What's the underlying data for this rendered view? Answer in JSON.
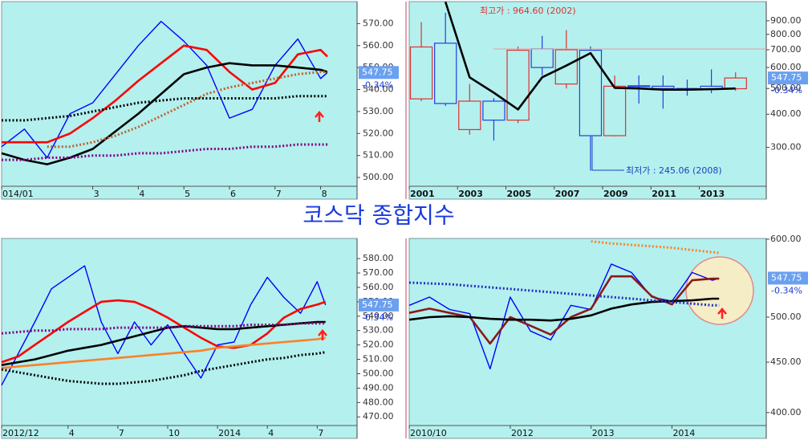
{
  "title": "코스닥 종합지수",
  "chart_data": [
    {
      "type": "line",
      "x": [
        1,
        1.5,
        2,
        2.5,
        3,
        3.5,
        4,
        4.5,
        5,
        5.5,
        6,
        6.5,
        7,
        7.5,
        8,
        8.15
      ],
      "xlim": [
        1,
        8.8
      ],
      "xticks": [
        {
          "value": 1,
          "label": "014/01"
        },
        3,
        4,
        5,
        6,
        7,
        8
      ],
      "ylim": [
        496,
        580
      ],
      "yticks": [
        {
          "value": 500,
          "label": "500.00"
        },
        {
          "value": 510,
          "label": "510.00"
        },
        {
          "value": 520,
          "label": "520.00"
        },
        {
          "value": 530,
          "label": "530.00"
        },
        {
          "value": 540,
          "label": "540.00"
        },
        {
          "value": 550,
          "label": "550.00"
        },
        {
          "value": 560,
          "label": "560.00"
        },
        {
          "value": 570,
          "label": "570.00"
        }
      ],
      "log": false,
      "series": [
        {
          "color": "#0000ff",
          "style": "thin",
          "values": [
            514,
            522,
            509,
            529,
            534,
            547,
            560,
            571,
            562,
            551,
            527,
            531,
            551,
            563,
            545,
            547.75
          ]
        },
        {
          "color": "#ff0000",
          "style": "thick",
          "values": [
            516,
            516,
            516,
            520,
            527,
            535,
            544,
            552,
            560,
            558,
            548,
            540,
            543,
            556,
            558,
            555
          ]
        },
        {
          "color": "#000000",
          "style": "thick",
          "values": [
            511,
            508,
            506,
            509,
            513,
            521,
            529,
            538,
            547,
            550,
            552,
            551,
            551,
            550,
            549,
            548
          ]
        },
        {
          "color": "#c0602a",
          "style": "dotted",
          "values": [
            null,
            null,
            514,
            514,
            516,
            519,
            523,
            528,
            533,
            538,
            541,
            543,
            545,
            547,
            548,
            548
          ]
        },
        {
          "color": "#000000",
          "style": "dotted",
          "values": [
            526,
            526,
            527,
            528,
            530,
            532,
            534,
            535,
            536,
            536,
            536,
            536,
            536,
            537,
            537,
            537
          ]
        },
        {
          "color": "#800080",
          "style": "dotted",
          "values": [
            508,
            508,
            509,
            509,
            510,
            510,
            511,
            511,
            512,
            513,
            513,
            514,
            514,
            515,
            515,
            515
          ]
        }
      ],
      "price_tag": "547.75",
      "change_tag": "-0.34%"
    },
    {
      "type": "candlestick",
      "x": [
        2001,
        2002,
        2003,
        2004,
        2005,
        2006,
        2007,
        2008,
        2009,
        2010,
        2011,
        2012,
        2013,
        2014
      ],
      "xlim": [
        2001,
        2015.77
      ],
      "xticks": [
        2001,
        2003,
        2005,
        2007,
        2009,
        2011,
        2013
      ],
      "ylim": [
        214,
        1063
      ],
      "yticks": [
        {
          "value": 300,
          "label": "300.00"
        },
        {
          "value": 400,
          "label": "400.00"
        },
        {
          "value": 500,
          "label": "500.00"
        },
        {
          "value": 600,
          "label": "600.00"
        },
        {
          "value": 700,
          "label": "700.00"
        },
        {
          "value": 800,
          "label": "800.00"
        },
        {
          "value": 900,
          "label": "900.00"
        }
      ],
      "log": true,
      "open": [
        457,
        741,
        350,
        448,
        380,
        705,
        520,
        697,
        332,
        512,
        510,
        500,
        510,
        499
      ],
      "high": [
        890,
        964.6,
        520,
        460,
        720,
        790,
        830,
        720,
        560,
        560,
        560,
        540,
        590,
        575
      ],
      "low": [
        448,
        430,
        335,
        318,
        370,
        560,
        500,
        245.06,
        330,
        439,
        420,
        470,
        480,
        490
      ],
      "close": [
        717,
        439,
        448,
        380,
        697,
        600,
        700,
        332,
        510,
        510,
        500,
        496,
        499,
        547.75
      ],
      "up_color": "#e03030",
      "down_color": "#2040e0",
      "series": [
        {
          "color": "#000000",
          "style": "thick",
          "values": [
            null,
            1060,
            551,
            482,
            417,
            551,
            610,
            680,
            503,
            500,
            495,
            495,
            497,
            500
          ]
        }
      ],
      "annotations": [
        {
          "text": "최고가 : 964.60 (2002)",
          "color": "#e03030"
        },
        {
          "text": "최저가 : 245.06 (2008)",
          "color": "#2040c0"
        }
      ],
      "price_tag": "547.75",
      "change_tag": "-0.34%"
    },
    {
      "type": "line",
      "x": [
        0,
        1,
        2,
        3,
        4,
        5,
        6,
        7,
        8,
        9,
        10,
        11,
        12,
        13,
        14,
        15,
        16,
        17,
        18,
        19,
        19.5
      ],
      "xlim": [
        0,
        21.4
      ],
      "xticks": [
        {
          "value": 0,
          "label": "2012/12"
        },
        4,
        7,
        10,
        {
          "value": 13,
          "label": "2014"
        },
        {
          "value": 16,
          "label": "4"
        },
        {
          "value": 19,
          "label": "7"
        }
      ],
      "ylim": [
        464,
        594
      ],
      "yticks": [
        {
          "value": 470,
          "label": "470.00"
        },
        {
          "value": 480,
          "label": "480.00"
        },
        {
          "value": 490,
          "label": "490.00"
        },
        {
          "value": 500,
          "label": "500.00"
        },
        {
          "value": 510,
          "label": "510.00"
        },
        {
          "value": 520,
          "label": "520.00"
        },
        {
          "value": 530,
          "label": "530.00"
        },
        {
          "value": 540,
          "label": "540.00"
        },
        {
          "value": 550,
          "label": "550.00"
        },
        {
          "value": 560,
          "label": "560.00"
        },
        {
          "value": 570,
          "label": "570.00"
        },
        {
          "value": 580,
          "label": "580.00"
        }
      ],
      "log": false,
      "series": [
        {
          "color": "#0000ff",
          "style": "thin",
          "values": [
            492,
            514,
            536,
            559,
            567,
            575,
            536,
            514,
            536,
            520,
            534,
            514,
            497,
            520,
            522,
            548,
            567,
            553,
            542,
            564,
            547.75
          ]
        },
        {
          "color": "#ff0000",
          "style": "thick",
          "values": [
            508,
            512,
            520,
            528,
            536,
            543,
            550,
            551,
            550,
            545,
            539,
            532,
            525,
            519,
            518,
            520,
            528,
            539,
            545,
            548,
            550
          ]
        },
        {
          "color": "#000000",
          "style": "thick",
          "values": [
            506,
            508,
            510,
            513,
            516,
            518,
            520,
            523,
            526,
            529,
            532,
            533,
            532,
            531,
            531,
            532,
            533,
            534,
            535,
            536,
            536
          ]
        },
        {
          "color": "#ff7f27",
          "style": "thick",
          "values": [
            504,
            505,
            506,
            507,
            508,
            509,
            510,
            511,
            512,
            513,
            514,
            515,
            516,
            518,
            519,
            520,
            521,
            522,
            523,
            524,
            525
          ]
        },
        {
          "color": "#000000",
          "style": "dotted",
          "values": [
            503,
            501,
            499,
            497,
            495,
            494,
            493,
            493,
            494,
            495,
            497,
            499,
            502,
            504,
            506,
            508,
            510,
            511,
            513,
            514,
            515
          ]
        },
        {
          "color": "#800080",
          "style": "dotted",
          "values": [
            528,
            529,
            530,
            530,
            531,
            531,
            531,
            532,
            532,
            532,
            532,
            533,
            533,
            533,
            533,
            534,
            534,
            534,
            535,
            535,
            535
          ]
        }
      ],
      "price_tag": "547.75",
      "change_tag": "-0.34%"
    },
    {
      "type": "line",
      "x": [
        0,
        3,
        6,
        9,
        12,
        15,
        18,
        21,
        24,
        27,
        30,
        33,
        36,
        39,
        42,
        45,
        46
      ],
      "xlim": [
        0,
        53
      ],
      "xticks": [
        {
          "value": 0,
          "label": "2010/10"
        },
        {
          "value": 15,
          "label": "2012"
        },
        {
          "value": 27,
          "label": "2013"
        },
        {
          "value": 39,
          "label": "2014"
        }
      ],
      "ylim": [
        388,
        601
      ],
      "yticks": [
        {
          "value": 400,
          "label": "400.00"
        },
        {
          "value": 450,
          "label": "450.00"
        },
        {
          "value": 500,
          "label": "500.00"
        },
        {
          "value": 600,
          "label": "600.00"
        }
      ],
      "log": true,
      "series": [
        {
          "color": "#0000ff",
          "style": "thin",
          "values": [
            514,
            524,
            509,
            504,
            443,
            524,
            484,
            474,
            514,
            509,
            566,
            555,
            524,
            519,
            555,
            545,
            547.75
          ]
        },
        {
          "color": "#8b1a1a",
          "style": "thick",
          "values": [
            505,
            510,
            505,
            500,
            470,
            500,
            490,
            480,
            500,
            510,
            550,
            550,
            525,
            515,
            545,
            547,
            547
          ]
        },
        {
          "color": "#000000",
          "style": "thick",
          "values": [
            497,
            500,
            501,
            500,
            498,
            497,
            497,
            496,
            498,
            502,
            510,
            515,
            518,
            519,
            520,
            522,
            522
          ]
        },
        {
          "color": "#2030c0",
          "style": "dotted",
          "values": [
            542,
            541,
            540,
            538,
            536,
            534,
            532,
            530,
            528,
            526,
            524,
            522,
            520,
            518,
            516,
            514,
            514
          ]
        },
        {
          "color": "#ff7f27",
          "style": "dotted",
          "values": [
            null,
            null,
            null,
            null,
            null,
            null,
            null,
            null,
            null,
            597,
            594,
            592,
            590,
            588,
            585,
            582,
            581
          ]
        }
      ],
      "price_tag": "547.75",
      "change_tag": "-0.34%"
    }
  ]
}
